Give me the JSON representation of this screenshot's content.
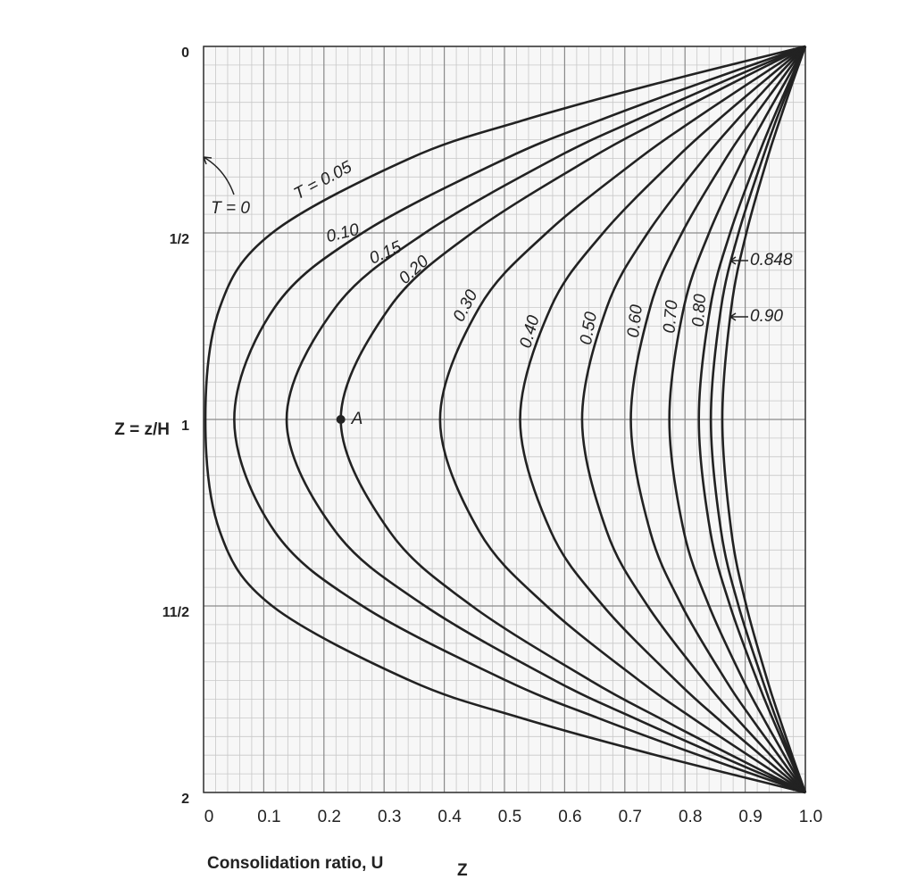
{
  "chart_data": {
    "type": "line",
    "xlabel": "Consolidation ratio, U",
    "xlabel_sub": "Z",
    "ylabel": "Z = z/H",
    "xlim": [
      0,
      1
    ],
    "ylim": [
      0,
      2
    ],
    "y_inverted": true,
    "xticks": [
      0,
      0.1,
      0.2,
      0.3,
      0.4,
      0.5,
      0.6,
      0.7,
      0.8,
      0.9,
      {
        "value": 1,
        "label": "1.0"
      }
    ],
    "yticks": [
      0,
      {
        "value": 0.5,
        "label": "1/2"
      },
      1,
      {
        "value": 1.5,
        "label": "11/2"
      },
      2
    ],
    "grid": true,
    "minor_grid": true,
    "y": [
      0,
      0.1,
      0.2,
      0.3,
      0.5,
      0.7,
      1,
      1.3,
      1.5,
      1.7,
      1.8,
      1.9,
      2
    ],
    "series": [
      {
        "name": "T = 0.05",
        "color": "#222222",
        "values": [
          1,
          0.752,
          0.527,
          0.343,
          0.114,
          0.027,
          0.003,
          0.027,
          0.114,
          0.343,
          0.527,
          0.752,
          1
        ]
      },
      {
        "name": "0.10",
        "color": "#222222",
        "values": [
          1,
          0.823,
          0.655,
          0.503,
          0.264,
          0.118,
          0.051,
          0.118,
          0.264,
          0.503,
          0.655,
          0.823,
          1
        ]
      },
      {
        "name": "0.15",
        "color": "#222222",
        "values": [
          1,
          0.855,
          0.715,
          0.584,
          0.368,
          0.219,
          0.138,
          0.219,
          0.368,
          0.584,
          0.715,
          0.855,
          1
        ]
      },
      {
        "name": "0.20",
        "color": "#222222",
        "values": [
          1,
          0.877,
          0.757,
          0.643,
          0.446,
          0.309,
          0.228,
          0.309,
          0.446,
          0.643,
          0.757,
          0.877,
          1
        ]
      },
      {
        "name": "0.30",
        "color": "#222222",
        "values": [
          1,
          0.905,
          0.812,
          0.724,
          0.57,
          0.458,
          0.393,
          0.458,
          0.57,
          0.724,
          0.812,
          0.905,
          1
        ]
      },
      {
        "name": "0.40",
        "color": "#222222",
        "values": [
          1,
          0.926,
          0.853,
          0.785,
          0.664,
          0.577,
          0.526,
          0.577,
          0.664,
          0.785,
          0.853,
          0.926,
          1
        ]
      },
      {
        "name": "0.50",
        "color": "#222222",
        "values": [
          1,
          0.942,
          0.885,
          0.832,
          0.738,
          0.67,
          0.629,
          0.67,
          0.738,
          0.832,
          0.885,
          0.942,
          1
        ]
      },
      {
        "name": "0.60",
        "color": "#222222",
        "values": [
          1,
          0.955,
          0.91,
          0.868,
          0.795,
          0.742,
          0.71,
          0.742,
          0.795,
          0.868,
          0.91,
          0.955,
          1
        ]
      },
      {
        "name": "0.70",
        "color": "#222222",
        "values": [
          1,
          0.965,
          0.93,
          0.897,
          0.84,
          0.798,
          0.774,
          0.798,
          0.84,
          0.897,
          0.93,
          0.965,
          1
        ]
      },
      {
        "name": "0.80",
        "color": "#222222",
        "values": [
          1,
          0.972,
          0.945,
          0.92,
          0.875,
          0.842,
          0.823,
          0.842,
          0.875,
          0.92,
          0.945,
          0.972,
          1
        ]
      },
      {
        "name": "0.848",
        "color": "#222222",
        "values": [
          1,
          0.975,
          0.951,
          0.929,
          0.889,
          0.86,
          0.843,
          0.86,
          0.889,
          0.929,
          0.951,
          0.975,
          1
        ]
      },
      {
        "name": "0.90",
        "color": "#222222",
        "values": [
          1,
          0.978,
          0.957,
          0.937,
          0.902,
          0.877,
          0.862,
          0.877,
          0.902,
          0.937,
          0.957,
          0.978,
          1
        ]
      }
    ],
    "annotations": [
      {
        "text": "T = 0"
      },
      {
        "text": "A",
        "x": 0.228,
        "y": 1
      }
    ]
  }
}
